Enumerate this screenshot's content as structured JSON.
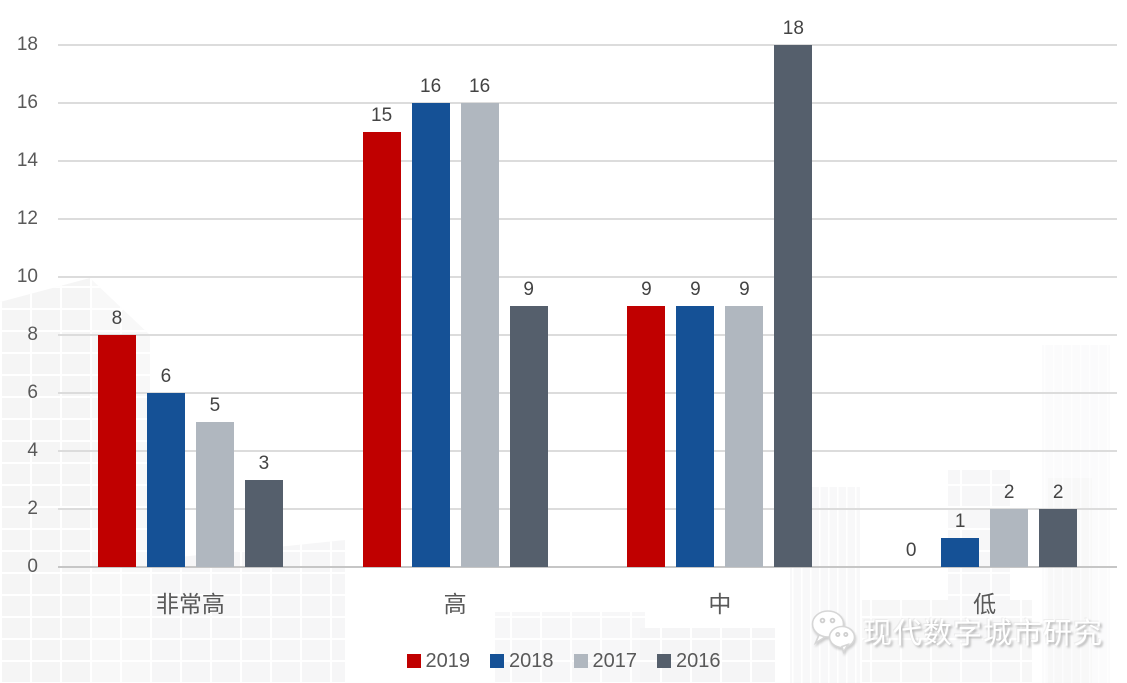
{
  "chart_data": {
    "type": "bar",
    "title": "",
    "xlabel": "",
    "ylabel": "",
    "categories": [
      "非常高",
      "高",
      "中",
      "低"
    ],
    "series": [
      {
        "name": "2019",
        "color": "#c00000",
        "values": [
          8,
          15,
          9,
          0
        ]
      },
      {
        "name": "2018",
        "color": "#155196",
        "values": [
          6,
          16,
          9,
          1
        ]
      },
      {
        "name": "2017",
        "color": "#b0b7bf",
        "values": [
          5,
          16,
          9,
          2
        ]
      },
      {
        "name": "2016",
        "color": "#555f6c",
        "values": [
          3,
          9,
          18,
          2
        ]
      }
    ],
    "ylim": [
      0,
      18
    ],
    "yticks": [
      0,
      2,
      4,
      6,
      8,
      10,
      12,
      14,
      16,
      18
    ],
    "grid": "horizontal",
    "data_labels": true,
    "legend_position": "bottom"
  },
  "watermark": {
    "text": "现代数字城市研究",
    "icon": "wechat-icon"
  },
  "styles": {
    "grid_color": "#dcdcdc",
    "axis_line_color": "#c6c6c6",
    "tick_label_color": "#595959",
    "data_label_color": "#444444",
    "legend_text_color": "#595959",
    "background_color": "#ffffff"
  }
}
